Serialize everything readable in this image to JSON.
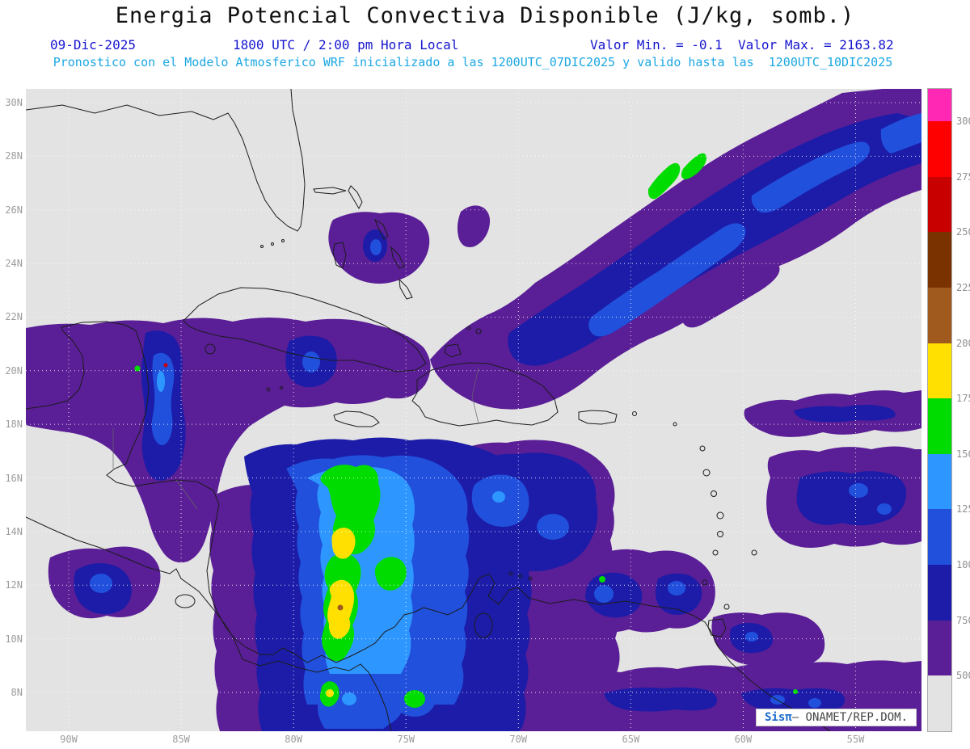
{
  "title": "Energia Potencial Convectiva Disponible (J/kg, somb.)",
  "header": {
    "date": "09-Dic-2025",
    "time": "1800 UTC / 2:00 pm Hora Local",
    "minmax": "Valor Min. = -0.1  Valor Max. = 2163.82",
    "model_line": "Pronostico con el Modelo Atmosferico WRF inicializado a las 1200UTC_07DIC2025 y valido hasta las  1200UTC_10DIC2025"
  },
  "watermark": {
    "brand": "Sisπ",
    "org_label": "– ONAMET/REP.DOM."
  },
  "chart_data": {
    "type": "heatmap",
    "variable": "Energia Potencial Convectiva Disponible (CAPE)",
    "units": "J/kg",
    "value_min": -0.1,
    "value_max": 2163.82,
    "valid_date": "09-Dic-2025",
    "valid_time": "1800 UTC / 2:00 pm Hora Local",
    "model": "WRF",
    "initialized": "1200UTC_07DIC2025",
    "valid_until": "1200UTC_10DIC2025",
    "x_ticks": [
      "90W",
      "85W",
      "80W",
      "75W",
      "70W",
      "65W",
      "60W",
      "55W"
    ],
    "y_ticks": [
      "30N",
      "28N",
      "26N",
      "24N",
      "22N",
      "20N",
      "18N",
      "16N",
      "14N",
      "12N",
      "10N",
      "8N"
    ],
    "grid": "dotted",
    "map_extent": {
      "lon_left": "92W",
      "lon_right": "52W",
      "lat_bottom": "6.5N",
      "lat_top": "30.5N"
    },
    "colorbar": {
      "orientation": "vertical-right",
      "levels": [
        500,
        750,
        1000,
        1250,
        1500,
        1750,
        2000,
        2250,
        2500,
        2750,
        3000
      ],
      "tick_labels_top_to_bottom": [
        "3000",
        "2750",
        "2500",
        "2250",
        "2000",
        "1750",
        "1500",
        "1250",
        "1000",
        "750",
        "500"
      ],
      "segment_colors_top_to_bottom": [
        "#FF28B4",
        "#FF0000",
        "#C80000",
        "#7A3200",
        "#A05A1E",
        "#FFE000",
        "#00DC00",
        "#2E96FF",
        "#2050DC",
        "#1C1CA8",
        "#5A1E96",
        "#E3E3E3"
      ],
      "background_below_min": "#E3E3E3"
    },
    "high_cape_regions": [
      {
        "region": "SW Caribbean off Nicaragua/Colombia (10N-17N, 75W-80W)",
        "cape_range": "1000-2163 J/kg, green/yellow maxima with absolute max 2163.82"
      },
      {
        "region": "Elongated NE Atlantic band (22N-30N, 55W-73W)",
        "cape_range": "500-1600 J/kg with small green cores near 27N 63W"
      },
      {
        "region": "NW Caribbean / Yucatan Channel and western Cuba (18N-23N, 80W-90W)",
        "cape_range": "500-1400 J/kg"
      },
      {
        "region": "Central Caribbean south of Hispaniola/Puerto Rico (13N-17N, 64W-70W)",
        "cape_range": "750-1400 J/kg"
      },
      {
        "region": "SE Caribbean near Venezuela coast and Trinidad (9N-12N, 59W-67W)",
        "cape_range": "750-1600 J/kg"
      },
      {
        "region": "Tropical Atlantic east of Lesser Antilles (12N-17N, 52W-58W)",
        "cape_range": "500-1300 J/kg"
      },
      {
        "region": "Eastern Pacific off Central America (10N-13N, 87W-91W)",
        "cape_range": "500-1250 J/kg"
      },
      {
        "region": "South America NE coast along 8N-9N (52W-68W)",
        "cape_range": "500-1100 J/kg"
      }
    ]
  }
}
